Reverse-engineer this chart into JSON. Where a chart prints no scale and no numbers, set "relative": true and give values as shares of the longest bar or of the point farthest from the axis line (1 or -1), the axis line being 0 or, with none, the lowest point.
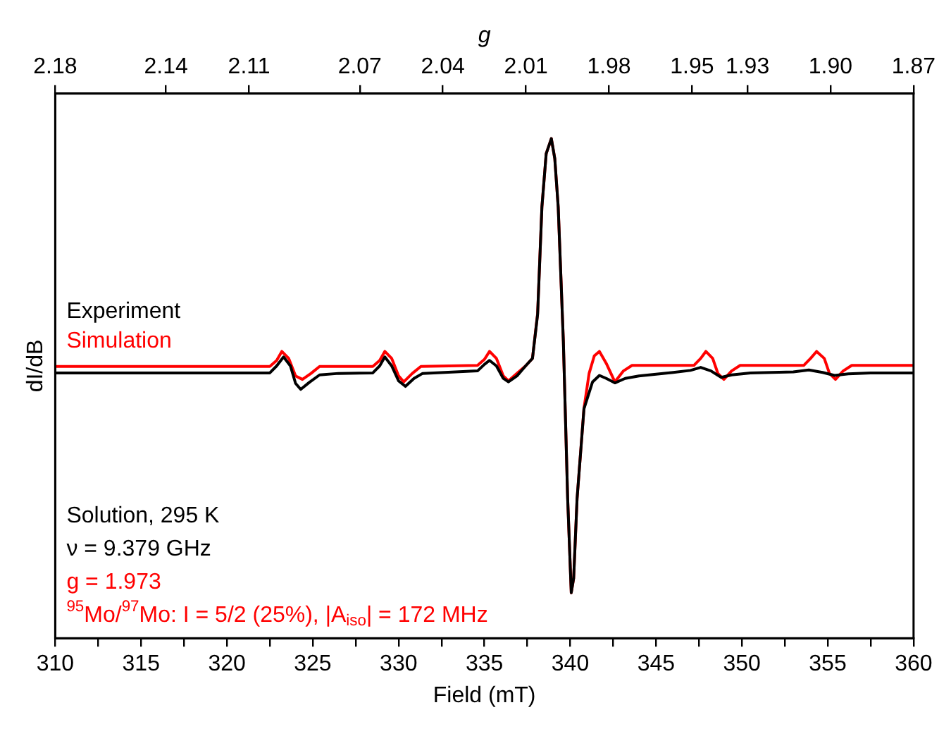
{
  "chart_data": {
    "type": "line",
    "xlabel": "Field (mT)",
    "ylabel": "dI/dB",
    "x2label": "g",
    "relative": true,
    "legend": "left",
    "grid": false,
    "marker": "none",
    "line_style": "solid",
    "xlim": [
      310,
      360
    ],
    "xticks": [
      310,
      {
        "value": 312.5,
        "label": null
      },
      315,
      {
        "value": 317.5,
        "label": null
      },
      320,
      {
        "value": 322.5,
        "label": null
      },
      325,
      {
        "value": 327.5,
        "label": null
      },
      330,
      {
        "value": 332.5,
        "label": null
      },
      335,
      {
        "value": 337.5,
        "label": null
      },
      340,
      {
        "value": 342.5,
        "label": null
      },
      345,
      {
        "value": 347.5,
        "label": null
      },
      350,
      {
        "value": 352.5,
        "label": null
      },
      355,
      {
        "value": 357.5,
        "label": null
      },
      360
    ],
    "x2lim": [
      2.18,
      1.87
    ],
    "x2ticks": [
      2.18,
      2.14,
      2.11,
      2.07,
      2.04,
      2.01,
      1.98,
      1.95,
      1.93,
      {
        "value": 1.9,
        "label": "1.90"
      },
      1.87
    ],
    "series": [
      {
        "name": "Experiment",
        "color": "#000000",
        "x": [
          310,
          322.5,
          322.9,
          323.3,
          323.7,
          324.0,
          324.3,
          324.8,
          325.4,
          326.5,
          328.5,
          328.9,
          329.2,
          329.6,
          330.0,
          330.4,
          330.9,
          331.4,
          334.6,
          335.0,
          335.3,
          335.7,
          336.1,
          336.4,
          336.9,
          337.4,
          337.8,
          338.1,
          338.35,
          338.6,
          338.9,
          339.1,
          339.3,
          339.6,
          339.85,
          340.06,
          340.2,
          340.4,
          340.8,
          341.3,
          341.7,
          342.1,
          342.6,
          343.2,
          344,
          346,
          347.0,
          347.6,
          348.2,
          348.8,
          349.4,
          350.5,
          353.0,
          353.9,
          354.7,
          355.4,
          356.2,
          357.5,
          360
        ],
        "values": [
          0.531,
          0.531,
          0.545,
          0.563,
          0.545,
          0.51,
          0.498,
          0.512,
          0.527,
          0.53,
          0.531,
          0.545,
          0.563,
          0.545,
          0.515,
          0.504,
          0.52,
          0.53,
          0.535,
          0.548,
          0.556,
          0.545,
          0.52,
          0.513,
          0.525,
          0.545,
          0.56,
          0.648,
          0.863,
          0.97,
          1.0,
          0.96,
          0.863,
          0.594,
          0.28,
          0.091,
          0.12,
          0.28,
          0.459,
          0.513,
          0.526,
          0.52,
          0.511,
          0.52,
          0.525,
          0.532,
          0.536,
          0.542,
          0.535,
          0.522,
          0.527,
          0.531,
          0.533,
          0.537,
          0.532,
          0.526,
          0.529,
          0.531,
          0.531
        ]
      },
      {
        "name": "Simulation",
        "color": "#ff0000",
        "x": [
          310,
          322.5,
          322.9,
          323.2,
          323.6,
          324.0,
          324.4,
          324.9,
          325.4,
          328.5,
          328.9,
          329.2,
          329.6,
          330.0,
          330.3,
          330.8,
          331.3,
          334.6,
          335.0,
          335.3,
          335.7,
          336.1,
          336.4,
          336.9,
          337.4,
          337.8,
          338.1,
          338.35,
          338.6,
          338.9,
          339.1,
          339.3,
          339.6,
          339.85,
          340.06,
          340.2,
          340.4,
          340.8,
          341.1,
          341.4,
          341.7,
          342.1,
          342.6,
          343.1,
          343.6,
          347.2,
          347.6,
          347.9,
          348.3,
          348.6,
          348.95,
          349.4,
          349.9,
          353.6,
          354.0,
          354.35,
          354.8,
          355.1,
          355.45,
          355.9,
          356.4,
          360
        ],
        "values": [
          0.544,
          0.544,
          0.556,
          0.574,
          0.56,
          0.525,
          0.518,
          0.53,
          0.544,
          0.544,
          0.556,
          0.574,
          0.56,
          0.525,
          0.513,
          0.53,
          0.544,
          0.546,
          0.558,
          0.574,
          0.56,
          0.525,
          0.515,
          0.53,
          0.545,
          0.56,
          0.65,
          0.863,
          0.97,
          1.0,
          0.96,
          0.863,
          0.594,
          0.28,
          0.091,
          0.12,
          0.28,
          0.46,
          0.53,
          0.565,
          0.574,
          0.55,
          0.513,
          0.535,
          0.546,
          0.546,
          0.56,
          0.574,
          0.56,
          0.53,
          0.518,
          0.535,
          0.546,
          0.546,
          0.56,
          0.574,
          0.56,
          0.53,
          0.518,
          0.535,
          0.546,
          0.546
        ]
      }
    ],
    "annotations": [
      "Solution, 295 K",
      "ν = 9.379 GHz",
      "g = 1.973",
      "$^{95}$Mo/$^{97}$Mo: I = 5/2 (25%), |A$_{iso}$| = 172 MHz"
    ]
  }
}
